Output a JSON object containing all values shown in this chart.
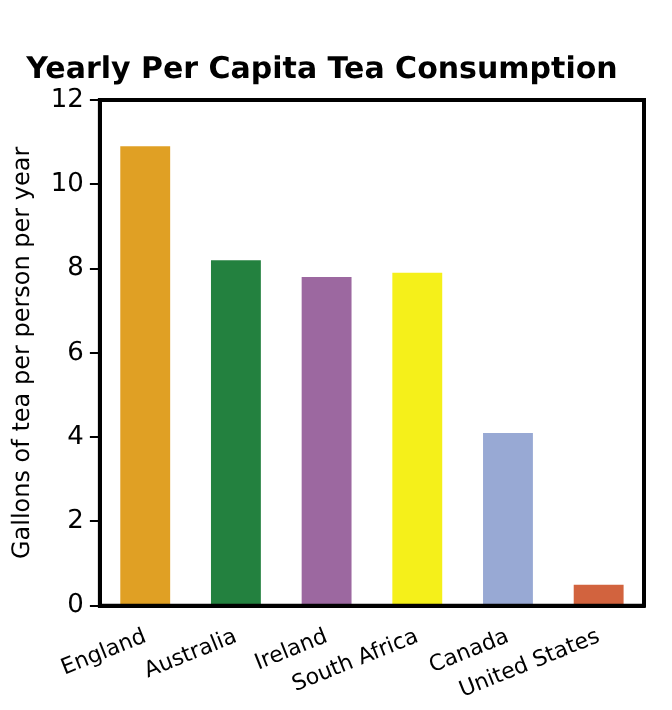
{
  "chart_data": {
    "type": "bar",
    "title": "Yearly Per Capita Tea Consumption",
    "ylabel": "Gallons of tea per person per year",
    "categories": [
      "England",
      "Australia",
      "Ireland",
      "South Africa",
      "Canada",
      "United States"
    ],
    "values": [
      10.9,
      8.2,
      7.8,
      7.9,
      4.1,
      0.5
    ],
    "colors": [
      "#e0a024",
      "#23813f",
      "#9c68a0",
      "#f5f01a",
      "#98a9d4",
      "#d2633e"
    ],
    "ylim": [
      0,
      12
    ],
    "yticks": [
      0,
      2,
      4,
      6,
      8,
      10,
      12
    ],
    "grid": false,
    "legend": false
  }
}
